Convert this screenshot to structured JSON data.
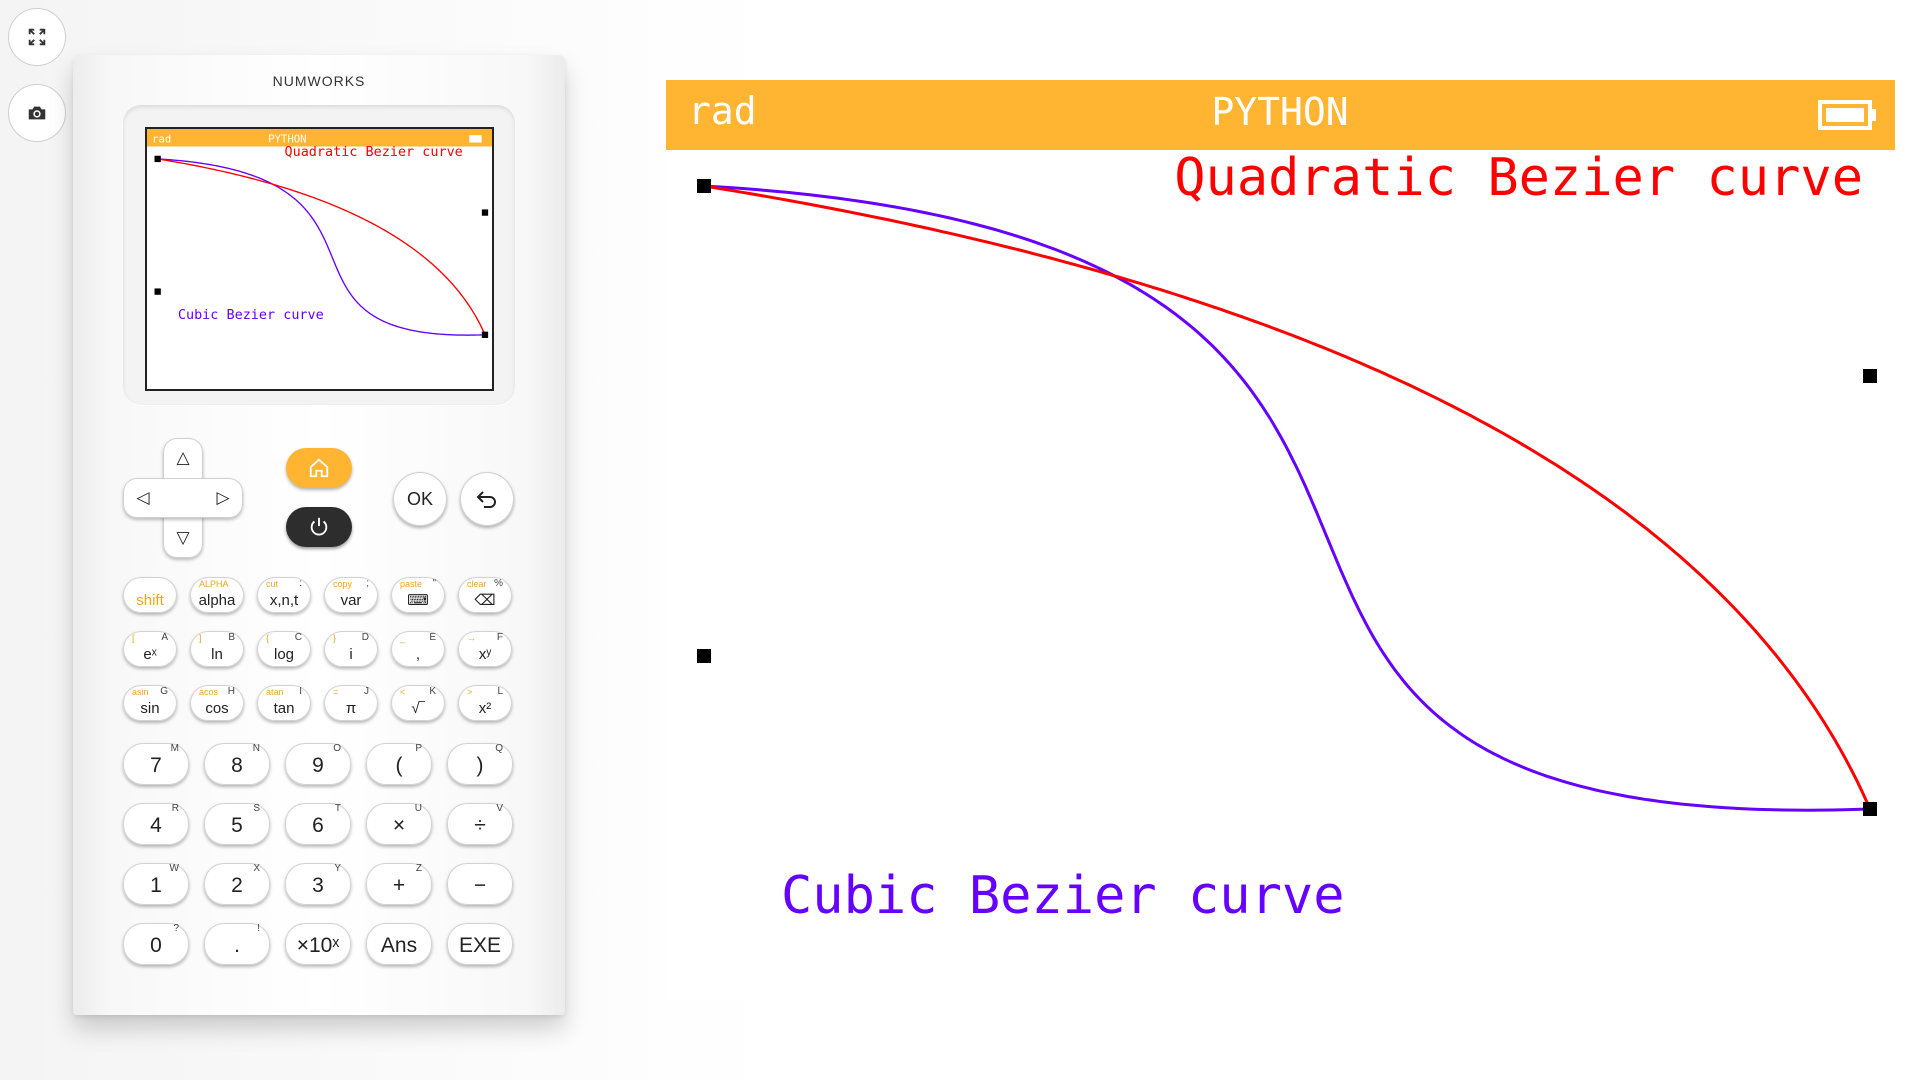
{
  "toolbar": {
    "fullscreen_icon": "expand-icon",
    "screenshot_icon": "camera-icon"
  },
  "calculator": {
    "brand": "NUMWORKS",
    "nav": {
      "up": "△",
      "down": "▽",
      "left": "◁",
      "right": "▷",
      "ok": "OK",
      "back_icon": "back-arrow-icon",
      "home_icon": "home-icon",
      "power_icon": "power-icon"
    },
    "function_keys": [
      {
        "main": "shift",
        "alt": "",
        "alpha": ""
      },
      {
        "main": "alpha",
        "alt": "ALPHA",
        "alpha": ""
      },
      {
        "main": "x,n,t",
        "alt": "cut",
        "alpha": ":"
      },
      {
        "main": "var",
        "alt": "copy",
        "alpha": ";"
      },
      {
        "main": "⌨",
        "alt": "paste",
        "alpha": "\""
      },
      {
        "main": "⌫",
        "alt": "clear",
        "alpha": "%"
      },
      {
        "main": "eˣ",
        "alt": "[",
        "alpha": "A"
      },
      {
        "main": "ln",
        "alt": "]",
        "alpha": "B"
      },
      {
        "main": "log",
        "alt": "{",
        "alpha": "C"
      },
      {
        "main": "i",
        "alt": "}",
        "alpha": "D"
      },
      {
        "main": ",",
        "alt": "_",
        "alpha": "E"
      },
      {
        "main": "xʸ",
        "alt": "→",
        "alpha": "F"
      },
      {
        "main": "sin",
        "alt": "asin",
        "alpha": "G"
      },
      {
        "main": "cos",
        "alt": "acos",
        "alpha": "H"
      },
      {
        "main": "tan",
        "alt": "atan",
        "alpha": "I"
      },
      {
        "main": "π",
        "alt": "=",
        "alpha": "J"
      },
      {
        "main": "√‾",
        "alt": "<",
        "alpha": "K"
      },
      {
        "main": "x²",
        "alt": ">",
        "alpha": "L"
      }
    ],
    "number_keys": [
      {
        "main": "7",
        "alpha": "M"
      },
      {
        "main": "8",
        "alpha": "N"
      },
      {
        "main": "9",
        "alpha": "O"
      },
      {
        "main": "(",
        "alpha": "P"
      },
      {
        "main": ")",
        "alpha": "Q"
      },
      {
        "main": "4",
        "alpha": "R"
      },
      {
        "main": "5",
        "alpha": "S"
      },
      {
        "main": "6",
        "alpha": "T"
      },
      {
        "main": "×",
        "alpha": "U"
      },
      {
        "main": "÷",
        "alpha": "V"
      },
      {
        "main": "1",
        "alpha": "W"
      },
      {
        "main": "2",
        "alpha": "X"
      },
      {
        "main": "3",
        "alpha": "Y"
      },
      {
        "main": "+",
        "alpha": "Z"
      },
      {
        "main": "−",
        "alpha": " "
      },
      {
        "main": "0",
        "alpha": "?"
      },
      {
        "main": ".",
        "alpha": "!"
      },
      {
        "main": "×10ˣ",
        "alpha": ""
      },
      {
        "main": "Ans",
        "alpha": ""
      },
      {
        "main": "EXE",
        "alpha": ""
      }
    ]
  },
  "screen": {
    "status_left": "rad",
    "status_title": "PYTHON",
    "battery_icon": "battery-icon",
    "header_color": "#ffb531",
    "quadratic_label": "Quadratic Bezier curve",
    "quadratic_color": "#ff0000",
    "cubic_label": "Cubic Bezier curve",
    "cubic_color": "#6600ff"
  }
}
